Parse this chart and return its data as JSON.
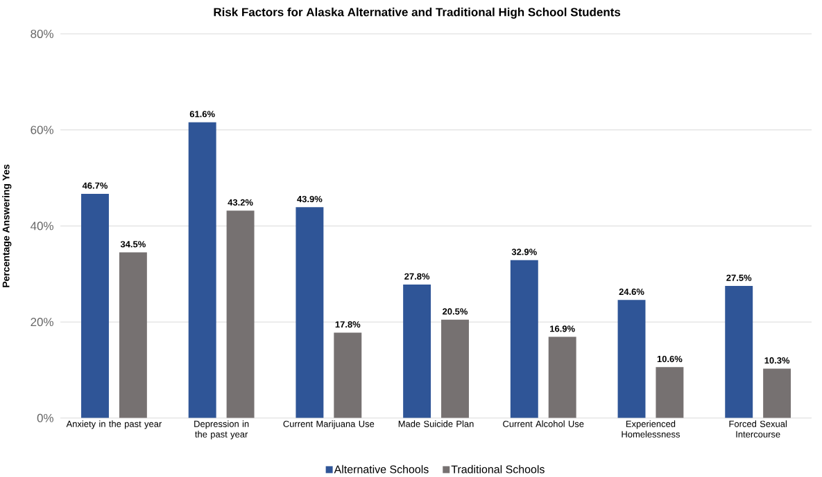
{
  "chart_data": {
    "type": "bar",
    "title": "Risk Factors for Alaska Alternative and Traditional High School Students",
    "ylabel": "Percentage Answering Yes",
    "categories": [
      "Anxiety in the past year",
      "Depression in the past year",
      "Current Marijuana Use",
      "Made Suicide Plan",
      "Current Alcohol Use",
      "Experienced Homelessness",
      "Forced Sexual Intercourse"
    ],
    "series": [
      {
        "name": "Alternative Schools",
        "color": "#2f5597",
        "values": [
          46.7,
          61.6,
          43.9,
          27.8,
          32.9,
          24.6,
          27.5
        ],
        "value_labels": [
          "46.7%",
          "61.6%",
          "43.9%",
          "27.8%",
          "32.9%",
          "24.6%",
          "27.5%"
        ]
      },
      {
        "name": "Traditional Schools",
        "color": "#767171",
        "values": [
          34.5,
          43.2,
          17.8,
          20.5,
          16.9,
          10.6,
          10.3
        ],
        "value_labels": [
          "34.5%",
          "43.2%",
          "17.8%",
          "20.5%",
          "16.9%",
          "10.6%",
          "10.3%"
        ]
      }
    ],
    "ylim": [
      0,
      80
    ],
    "yticks": [
      {
        "value": 0,
        "label": "0%"
      },
      {
        "value": 20,
        "label": "20%"
      },
      {
        "value": 40,
        "label": "40%"
      },
      {
        "value": 60,
        "label": "60%"
      },
      {
        "value": 80,
        "label": "80%"
      }
    ],
    "grid": "y",
    "legend": "bottom"
  }
}
